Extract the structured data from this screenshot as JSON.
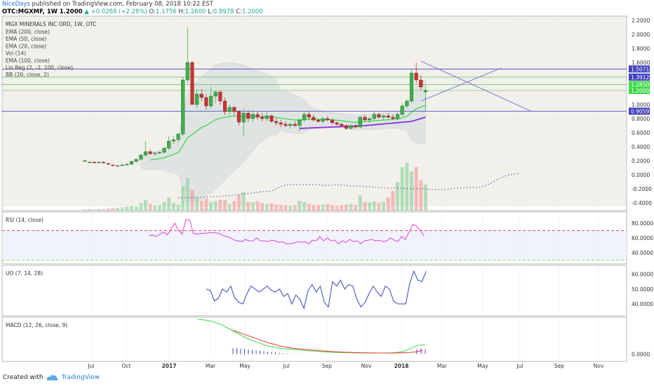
{
  "header": {
    "user": "NiceDays",
    "published": "published on TradingView.com, February 08, 2018 10:22 EST",
    "symbol": "OTC:MGXMF, 1W",
    "last": "1.2000",
    "change": "▲ +0.0268 (+2.28%)",
    "ohlc": {
      "o_label": "O:",
      "o": "1.1756",
      "h_label": "H:",
      "h": "1.2600",
      "l_label": "L:",
      "l": "0.8978",
      "c_label": "C:",
      "c": "1.2000"
    }
  },
  "footer": {
    "created": "Created with",
    "brand": "TradingView"
  },
  "colors": {
    "up": "#3cb34a",
    "down": "#d32f2f",
    "ema_green": "#3fd94a",
    "linreg": "#8a2be2",
    "hline": "#4040c0",
    "rsi": "#e040e0",
    "uo": "#3344bb",
    "macd": "#3fd94a",
    "signal": "#e53935",
    "bg": "#e8e4d8"
  },
  "chart_data": [
    {
      "type": "candlestick",
      "title": "MGX MINERALS INC ORD, 1W, OTC",
      "studies": [
        "EMA (200, close)",
        "EMA (50, close)",
        "EMA (20, close)",
        "Vol (14)",
        "EMA (100, close)",
        "Lin Reg (2, -2, 100, close)",
        "BB (20, close, 2)"
      ],
      "x_labels": [
        "Jul",
        "Oct",
        "2017",
        "Mar",
        "May",
        "Jul",
        "Sep",
        "Nov",
        "2018",
        "Mar",
        "May",
        "Jul",
        "Sep",
        "Nov"
      ],
      "y_ticks": [
        "2.2000",
        "2.0000",
        "1.8000",
        "1.6000",
        "1.4000",
        "1.2000",
        "1.0000",
        "0.8000",
        "0.6000",
        "0.4000",
        "0.2000",
        "0.0000",
        "-0.2000",
        "-0.4000"
      ],
      "ylim": [
        -0.5,
        2.3
      ],
      "price_labels": [
        "1.5071",
        "1.3912",
        "1.2850",
        "1.2000",
        "0.9059"
      ],
      "horizontal_lines": [
        1.5071,
        1.3912,
        1.285,
        0.9059
      ],
      "candles_ohlc": [
        [
          0.2,
          0.21,
          0.19,
          0.2
        ],
        [
          0.18,
          0.19,
          0.17,
          0.18
        ],
        [
          0.18,
          0.19,
          0.16,
          0.17
        ],
        [
          0.17,
          0.19,
          0.16,
          0.18
        ],
        [
          0.18,
          0.19,
          0.16,
          0.17
        ],
        [
          0.16,
          0.17,
          0.14,
          0.15
        ],
        [
          0.14,
          0.15,
          0.12,
          0.13
        ],
        [
          0.13,
          0.14,
          0.12,
          0.13
        ],
        [
          0.13,
          0.15,
          0.12,
          0.14
        ],
        [
          0.14,
          0.16,
          0.13,
          0.15
        ],
        [
          0.15,
          0.2,
          0.14,
          0.19
        ],
        [
          0.19,
          0.24,
          0.17,
          0.22
        ],
        [
          0.22,
          0.3,
          0.2,
          0.28
        ],
        [
          0.28,
          0.48,
          0.26,
          0.33
        ],
        [
          0.33,
          0.36,
          0.28,
          0.3
        ],
        [
          0.3,
          0.32,
          0.27,
          0.31
        ],
        [
          0.31,
          0.33,
          0.29,
          0.32
        ],
        [
          0.32,
          0.4,
          0.3,
          0.38
        ],
        [
          0.38,
          0.55,
          0.35,
          0.48
        ],
        [
          0.48,
          0.56,
          0.44,
          0.5
        ],
        [
          0.5,
          0.6,
          0.46,
          0.58
        ],
        [
          0.58,
          1.4,
          0.55,
          1.35
        ],
        [
          1.35,
          2.1,
          1.3,
          1.6
        ],
        [
          1.6,
          1.62,
          1.0,
          1.0
        ],
        [
          1.0,
          1.22,
          0.95,
          1.15
        ],
        [
          1.15,
          1.22,
          1.05,
          1.1
        ],
        [
          1.1,
          1.15,
          0.92,
          0.98
        ],
        [
          0.98,
          1.25,
          0.95,
          1.12
        ],
        [
          1.12,
          1.2,
          1.02,
          1.18
        ],
        [
          1.18,
          1.2,
          1.0,
          1.05
        ],
        [
          1.05,
          1.1,
          0.85,
          0.9
        ],
        [
          0.9,
          1.0,
          0.85,
          0.96
        ],
        [
          0.96,
          0.98,
          0.85,
          0.9
        ],
        [
          0.9,
          0.92,
          0.7,
          0.75
        ],
        [
          0.75,
          0.95,
          0.55,
          0.88
        ],
        [
          0.88,
          0.92,
          0.75,
          0.8
        ],
        [
          0.8,
          0.92,
          0.75,
          0.86
        ],
        [
          0.86,
          0.9,
          0.78,
          0.82
        ],
        [
          0.82,
          0.88,
          0.76,
          0.8
        ],
        [
          0.8,
          0.9,
          0.76,
          0.84
        ],
        [
          0.84,
          0.86,
          0.74,
          0.76
        ],
        [
          0.76,
          0.8,
          0.7,
          0.74
        ],
        [
          0.74,
          0.78,
          0.68,
          0.72
        ],
        [
          0.72,
          0.76,
          0.68,
          0.7
        ],
        [
          0.7,
          0.74,
          0.66,
          0.72
        ],
        [
          0.72,
          0.76,
          0.68,
          0.7
        ],
        [
          0.7,
          0.8,
          0.62,
          0.78
        ],
        [
          0.78,
          0.9,
          0.75,
          0.86
        ],
        [
          0.86,
          0.9,
          0.78,
          0.82
        ],
        [
          0.82,
          0.86,
          0.76,
          0.78
        ],
        [
          0.78,
          0.8,
          0.74,
          0.76
        ],
        [
          0.76,
          0.82,
          0.74,
          0.8
        ],
        [
          0.8,
          0.84,
          0.76,
          0.78
        ],
        [
          0.78,
          0.8,
          0.72,
          0.74
        ],
        [
          0.74,
          0.76,
          0.7,
          0.72
        ],
        [
          0.72,
          0.74,
          0.68,
          0.7
        ],
        [
          0.7,
          0.72,
          0.64,
          0.66
        ],
        [
          0.66,
          0.72,
          0.64,
          0.7
        ],
        [
          0.7,
          0.72,
          0.66,
          0.68
        ],
        [
          0.68,
          0.84,
          0.66,
          0.82
        ],
        [
          0.82,
          0.86,
          0.76,
          0.78
        ],
        [
          0.78,
          0.82,
          0.74,
          0.8
        ],
        [
          0.8,
          0.9,
          0.78,
          0.86
        ],
        [
          0.86,
          0.88,
          0.8,
          0.82
        ],
        [
          0.82,
          0.86,
          0.78,
          0.84
        ],
        [
          0.84,
          0.88,
          0.8,
          0.82
        ],
        [
          0.82,
          0.86,
          0.78,
          0.8
        ],
        [
          0.8,
          0.88,
          0.78,
          0.86
        ],
        [
          0.86,
          1.02,
          0.84,
          0.98
        ],
        [
          0.98,
          1.08,
          0.95,
          1.05
        ],
        [
          1.05,
          1.5,
          1.02,
          1.45
        ],
        [
          1.45,
          1.6,
          1.3,
          1.35
        ],
        [
          1.35,
          1.42,
          1.2,
          1.25
        ],
        [
          1.18,
          1.26,
          0.9,
          1.2
        ]
      ],
      "volume": [
        5,
        6,
        4,
        7,
        5,
        9,
        12,
        14,
        16,
        18,
        22,
        19,
        35,
        50,
        30,
        22,
        25,
        40,
        60,
        35,
        28,
        110,
        150,
        95,
        60,
        45,
        55,
        38,
        42,
        50,
        48,
        30,
        44,
        72,
        85,
        40,
        38,
        42,
        35,
        30,
        33,
        28,
        26,
        24,
        22,
        26,
        44,
        38,
        30,
        26,
        24,
        28,
        30,
        26,
        22,
        24,
        28,
        30,
        26,
        70,
        40,
        38,
        42,
        36,
        40,
        60,
        90,
        130,
        200,
        220,
        180,
        200,
        140,
        120
      ],
      "vol_ema": [
        -0.33,
        -0.33,
        -0.33,
        -0.32,
        -0.32,
        -0.32,
        -0.32,
        -0.31,
        -0.31,
        -0.31,
        -0.3,
        -0.3,
        -0.29,
        -0.28,
        -0.27,
        -0.27,
        -0.26,
        -0.25,
        -0.24,
        -0.24,
        -0.23,
        -0.2,
        -0.17,
        -0.15,
        -0.14,
        -0.14,
        -0.14,
        -0.14,
        -0.14,
        -0.14,
        -0.14,
        -0.15,
        -0.15,
        -0.15,
        -0.14,
        -0.15,
        -0.15,
        -0.16,
        -0.16,
        -0.16,
        -0.17,
        -0.17,
        -0.18,
        -0.18,
        -0.19,
        -0.19,
        -0.19,
        -0.19,
        -0.19,
        -0.2,
        -0.2,
        -0.2,
        -0.2,
        -0.2,
        -0.21,
        -0.21,
        -0.21,
        -0.21,
        -0.21,
        -0.19,
        -0.19,
        -0.19,
        -0.18,
        -0.18,
        -0.18,
        -0.17,
        -0.15,
        -0.12,
        -0.08,
        -0.05,
        -0.02,
        0.0,
        0.01,
        0.02
      ]
    },
    {
      "type": "line",
      "title": "RSI (14, close)",
      "y_ticks": [
        "80.0000",
        "60.0000",
        "40.0000"
      ],
      "ylim": [
        25,
        95
      ],
      "levels": [
        70,
        30
      ],
      "values": [
        63,
        64,
        62,
        65,
        68,
        64,
        72,
        80,
        70,
        65,
        85,
        84,
        66,
        65,
        66,
        66,
        67,
        67,
        67,
        66,
        63,
        62,
        60,
        57,
        56,
        55,
        58,
        56,
        56,
        60,
        56,
        56,
        55,
        57,
        56,
        54,
        55,
        52,
        52,
        53,
        55,
        54,
        55,
        52,
        57,
        56,
        62,
        56,
        60,
        56,
        57,
        52,
        56,
        54,
        58,
        55,
        56,
        52,
        56,
        57,
        58,
        56,
        57,
        55,
        56,
        60,
        57,
        55,
        62,
        58,
        68,
        78,
        76,
        70,
        63
      ]
    },
    {
      "type": "line",
      "title": "UO (7, 14, 28)",
      "y_ticks": [
        "60.0000",
        "50.0000",
        "40.0000"
      ],
      "ylim": [
        32,
        66
      ],
      "values": [
        50,
        49,
        42,
        44,
        50,
        48,
        52,
        44,
        41,
        40,
        47,
        52,
        50,
        48,
        50,
        52,
        49,
        48,
        50,
        45,
        47,
        40,
        46,
        43,
        37,
        49,
        53,
        48,
        52,
        41,
        38,
        55,
        52,
        56,
        50,
        53,
        52,
        43,
        38,
        41,
        47,
        52,
        48,
        45,
        52,
        50,
        42,
        40,
        40,
        40,
        54,
        62,
        56,
        55,
        62
      ]
    },
    {
      "type": "line",
      "title": "MACD (12, 26, close, 9)",
      "y_ticks": [
        "0.0000"
      ],
      "ylim": [
        -0.09,
        0.45
      ],
      "macd": [
        0.42,
        0.42,
        0.41,
        0.4,
        0.38,
        0.36,
        0.33,
        0.3,
        0.27,
        0.24,
        0.21,
        0.18,
        0.16,
        0.14,
        0.12,
        0.1,
        0.09,
        0.08,
        0.07,
        0.065,
        0.06,
        0.055,
        0.05,
        0.045,
        0.04,
        0.036,
        0.032,
        0.028,
        0.025,
        0.022,
        0.02,
        0.018,
        0.016,
        0.015,
        0.014,
        0.013,
        0.013,
        0.012,
        0.012,
        0.012,
        0.013,
        0.014,
        0.016,
        0.02,
        0.028,
        0.045,
        0.07,
        0.095,
        0.11,
        0.115
      ],
      "signal": [
        0.29,
        0.27,
        0.25,
        0.23,
        0.21,
        0.19,
        0.17,
        0.15,
        0.13,
        0.12,
        0.1,
        0.09,
        0.08,
        0.07,
        0.065,
        0.06,
        0.055,
        0.05,
        0.045,
        0.04,
        0.036,
        0.032,
        0.029,
        0.026,
        0.023,
        0.021,
        0.019,
        0.017,
        0.016,
        0.015,
        0.014,
        0.013,
        0.013,
        0.013,
        0.013,
        0.013,
        0.014,
        0.016,
        0.019,
        0.024,
        0.032,
        0.045
      ],
      "histogram": [
        0.07,
        0.07,
        0.065,
        0.06,
        0.055,
        0.05,
        0.045,
        0.04,
        0.035,
        0.03,
        0.025,
        0.02,
        0.015,
        0.01,
        0.006,
        0.003,
        0.002,
        0.002,
        0.003,
        0.004,
        0.06,
        0.07,
        0.06
      ]
    }
  ]
}
